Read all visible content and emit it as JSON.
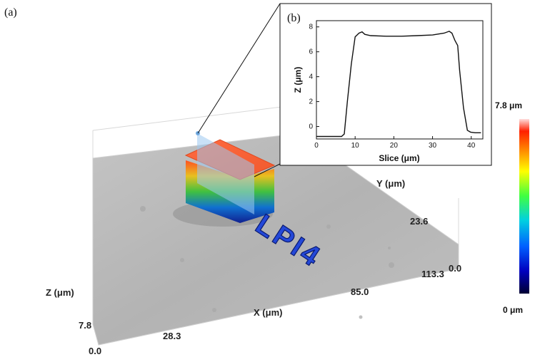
{
  "panel_a_label": "(a)",
  "panel_b_label": "(b)",
  "scene_3d": {
    "z_label": "Z (μm)",
    "z_top": "7.8",
    "z_bottom": "0.0",
    "x_label": "X (μm)",
    "x_tick_1": "28.3",
    "x_tick_2": "85.0",
    "x_tick_3": "113.3",
    "y_label": "Y (μm)",
    "y_tick_1": "23.6",
    "y_tick_2": "0.0",
    "engraved_text": "LPI4"
  },
  "colorbar": {
    "max_label": "7.8 μm",
    "min_label": "0 μm",
    "stops": [
      "#000033",
      "#0000c0",
      "#0060ff",
      "#00d0e0",
      "#40ff40",
      "#ffff00",
      "#ff8000",
      "#ff2000",
      "#ffdddd"
    ]
  },
  "chart_data": {
    "type": "line",
    "xlabel": "Slice (μm)",
    "ylabel": "Z (μm)",
    "xlim": [
      0,
      43
    ],
    "ylim": [
      -1,
      8.5
    ],
    "xticks": [
      0,
      10,
      20,
      30,
      40
    ],
    "yticks": [
      0,
      2,
      4,
      6,
      8
    ],
    "series": [
      {
        "x": [
          0,
          6.5,
          7.2,
          8,
          9,
          10,
          11,
          11.8,
          12.5,
          14,
          18,
          22,
          26,
          30,
          33,
          34.3,
          35,
          35.8,
          36.5,
          37,
          38,
          39,
          39.8,
          41,
          42.5
        ],
        "y": [
          -0.8,
          -0.8,
          -0.6,
          2,
          5,
          7.2,
          7.5,
          7.6,
          7.4,
          7.3,
          7.25,
          7.25,
          7.3,
          7.35,
          7.5,
          7.65,
          7.5,
          6.9,
          6.5,
          4.5,
          1.5,
          -0.3,
          -0.45,
          -0.5,
          -0.5
        ]
      }
    ]
  }
}
